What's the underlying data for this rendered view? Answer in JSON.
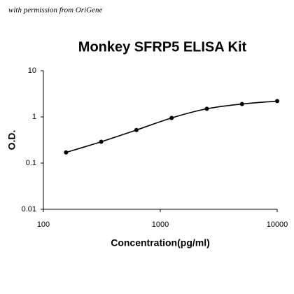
{
  "chart_data": {
    "type": "line",
    "title": "Monkey SFRP5 ELISA Kit",
    "annotation": "with permission from OriGene",
    "x_label": "Concentration(pg/ml)",
    "y_label": "O.D.",
    "x": [
      156.25,
      312.5,
      625,
      1250,
      2500,
      5000,
      10000
    ],
    "series": [
      {
        "color": "#000000",
        "values": [
          0.17,
          0.29,
          0.52,
          0.95,
          1.5,
          1.9,
          2.2
        ]
      }
    ],
    "xlim": [
      100,
      10000
    ],
    "xticks": [
      100,
      1000,
      10000
    ],
    "ylim": [
      0.01,
      10
    ],
    "yticks": [
      0.01,
      0.1,
      1,
      10
    ],
    "log_x": true,
    "log_y": true,
    "grid": false
  }
}
